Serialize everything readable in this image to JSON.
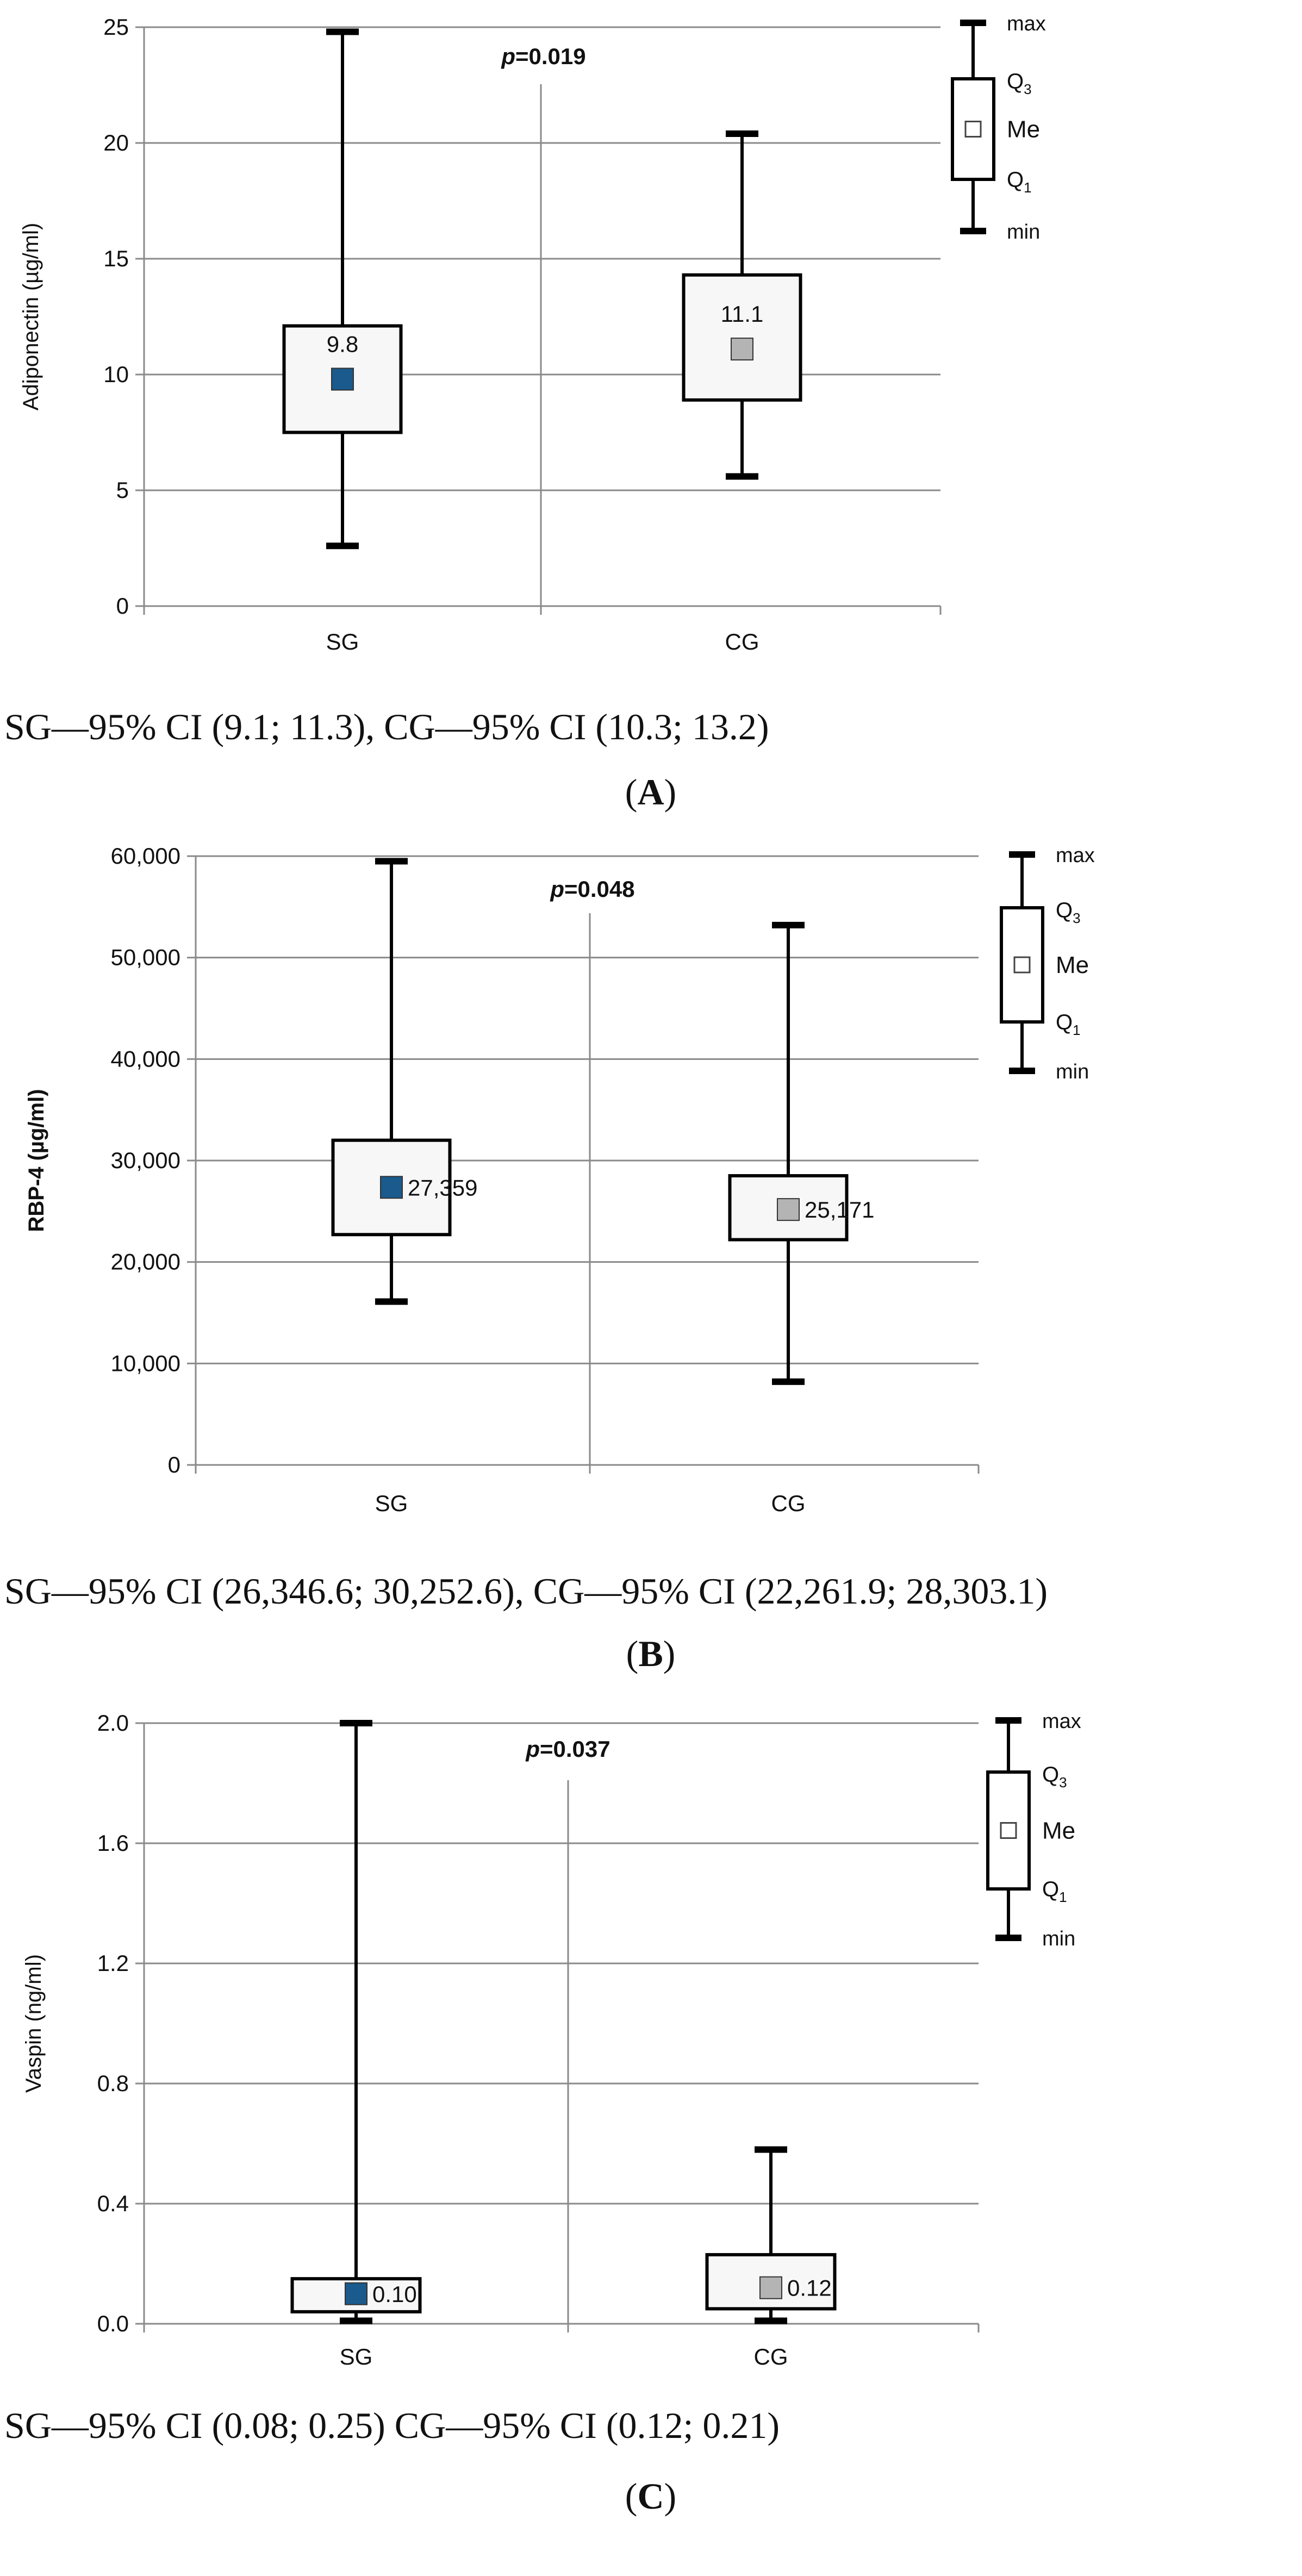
{
  "chart_data": [
    {
      "type": "boxplot",
      "panel_label": "A",
      "ylabel": "Adiponectin (µg/ml)",
      "ylim": [
        0,
        25
      ],
      "y_ticks": [
        0,
        5,
        10,
        15,
        20,
        25
      ],
      "y_tick_labels": [
        "0",
        "5",
        "10",
        "15",
        "20",
        "25"
      ],
      "categories": [
        "SG",
        "CG"
      ],
      "p_prefix": "p",
      "p_suffix": "=0.019",
      "groups": [
        {
          "name": "SG",
          "min": 2.6,
          "q1": 7.5,
          "median": 9.8,
          "q3": 12.1,
          "max": 24.8,
          "median_label": "9.8",
          "color": "#1a5a8c"
        },
        {
          "name": "CG",
          "min": 5.6,
          "q1": 8.9,
          "median": 11.1,
          "q3": 14.3,
          "max": 20.4,
          "median_label": "11.1",
          "color": "#b4b4b4"
        }
      ],
      "legend": {
        "max": "max",
        "q3": "Q",
        "q3_sub": "3",
        "me": "Me",
        "q1": "Q",
        "q1_sub": "1",
        "min": "min"
      },
      "ci_text": "SG—95% CI (9.1; 11.3), CG—95% CI (10.3; 13.2)"
    },
    {
      "type": "boxplot",
      "panel_label": "B",
      "ylabel": "RBP-4 (µg/ml)",
      "ylim": [
        0,
        60000
      ],
      "y_ticks": [
        0,
        10000,
        20000,
        30000,
        40000,
        50000,
        60000
      ],
      "y_tick_labels": [
        "0",
        "10,000",
        "20,000",
        "30,000",
        "40,000",
        "50,000",
        "60,000"
      ],
      "categories": [
        "SG",
        "CG"
      ],
      "p_prefix": "p",
      "p_suffix": "=0.048",
      "groups": [
        {
          "name": "SG",
          "min": 16100,
          "q1": 22700,
          "median": 27359,
          "q3": 32000,
          "max": 59500,
          "median_label": "27,359",
          "color": "#1a5a8c"
        },
        {
          "name": "CG",
          "min": 8200,
          "q1": 22200,
          "median": 25171,
          "q3": 28500,
          "max": 53200,
          "median_label": "25,171",
          "color": "#b4b4b4"
        }
      ],
      "legend": {
        "max": "max",
        "q3": "Q",
        "q3_sub": "3",
        "me": "Me",
        "q1": "Q",
        "q1_sub": "1",
        "min": "min"
      },
      "ci_text": "SG—95% CI (26,346.6; 30,252.6), CG—95% CI (22,261.9; 28,303.1)"
    },
    {
      "type": "boxplot",
      "panel_label": "C",
      "ylabel": "Vaspin (ng/ml)",
      "ylim": [
        0,
        2.0
      ],
      "y_ticks": [
        0,
        0.4,
        0.8,
        1.2,
        1.6,
        2.0
      ],
      "y_tick_labels": [
        "0.0",
        "0.4",
        "0.8",
        "1.2",
        "1.6",
        "2.0"
      ],
      "categories": [
        "SG",
        "CG"
      ],
      "p_prefix": "p",
      "p_suffix": "=0.037",
      "groups": [
        {
          "name": "SG",
          "min": 0.01,
          "q1": 0.04,
          "median": 0.1,
          "q3": 0.15,
          "max": 2.0,
          "median_label": "0.10",
          "color": "#1a5a8c"
        },
        {
          "name": "CG",
          "min": 0.01,
          "q1": 0.05,
          "median": 0.12,
          "q3": 0.23,
          "max": 0.58,
          "median_label": "0.12",
          "color": "#b4b4b4"
        }
      ],
      "legend": {
        "max": "max",
        "q3": "Q",
        "q3_sub": "3",
        "me": "Me",
        "q1": "Q",
        "q1_sub": "1",
        "min": "min"
      },
      "ci_text": "SG—95% CI (0.08; 0.25) CG—95% CI (0.12; 0.21)"
    }
  ]
}
